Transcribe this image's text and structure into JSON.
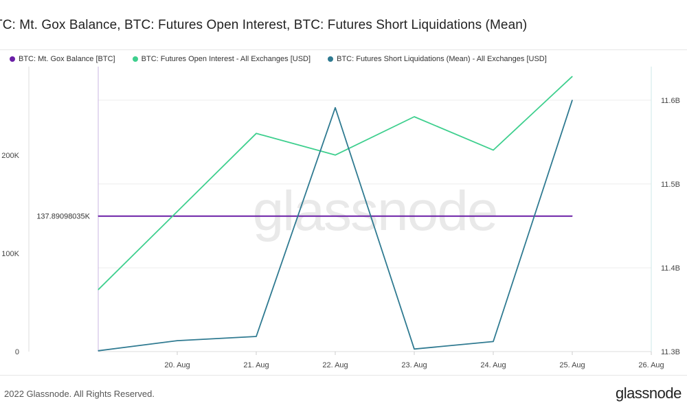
{
  "title": "TC: Mt. Gox Balance, BTC: Futures Open Interest, BTC: Futures Short Liquidations (Mean)",
  "legend": [
    {
      "label": "BTC: Mt. Gox Balance [BTC]",
      "color": "#6a1fa6"
    },
    {
      "label": "BTC: Futures Open Interest - All Exchanges [USD]",
      "color": "#3ecf8e"
    },
    {
      "label": "BTC: Futures Short Liquidations (Mean) - All Exchanges [USD]",
      "color": "#2f7a91"
    }
  ],
  "watermark": "glassnode",
  "footer": {
    "copyright": "2022 Glassnode. All Rights Reserved.",
    "brand": "glassnode"
  },
  "chart_data": {
    "type": "line",
    "x_ticks": [
      "20. Aug",
      "21. Aug",
      "22. Aug",
      "23. Aug",
      "24. Aug",
      "25. Aug",
      "26. Aug"
    ],
    "x_domain": [
      "2022-08-19",
      "2022-08-26"
    ],
    "left_axis": {
      "ticks": [
        "0",
        "100K",
        "200K"
      ],
      "tick_values": [
        0,
        100000,
        200000
      ],
      "ylim": [
        0,
        290000
      ]
    },
    "right_axis": {
      "ticks": [
        "11.3B",
        "11.4B",
        "11.5B",
        "11.6B"
      ],
      "tick_values": [
        11.3,
        11.4,
        11.5,
        11.6
      ],
      "ylim": [
        11.3,
        11.64
      ],
      "unit": "B"
    },
    "price_label": "137.89098035K",
    "series": [
      {
        "name": "BTC: Mt. Gox Balance [BTC]",
        "axis": "left",
        "color": "#6a1fa6",
        "x": [
          "2022-08-19",
          "2022-08-20",
          "2022-08-21",
          "2022-08-22",
          "2022-08-23",
          "2022-08-24",
          "2022-08-25"
        ],
        "values": [
          137890.98,
          137890.98,
          137890.98,
          137890.98,
          137890.98,
          137890.98,
          137890.98
        ]
      },
      {
        "name": "BTC: Futures Open Interest - All Exchanges [USD]",
        "axis": "left",
        "color": "#3ecf8e",
        "x": [
          "2022-08-19",
          "2022-08-21",
          "2022-08-22",
          "2022-08-23",
          "2022-08-24",
          "2022-08-25"
        ],
        "values": [
          63000,
          222000,
          200000,
          239000,
          205000,
          280000
        ]
      },
      {
        "name": "BTC: Futures Short Liquidations (Mean) - All Exchanges [USD]",
        "axis": "right",
        "color": "#2f7a91",
        "x": [
          "2022-08-19",
          "2022-08-20",
          "2022-08-21",
          "2022-08-22",
          "2022-08-23",
          "2022-08-24",
          "2022-08-25"
        ],
        "values": [
          11.301,
          11.313,
          11.318,
          11.591,
          11.303,
          11.312,
          11.6
        ]
      }
    ]
  }
}
